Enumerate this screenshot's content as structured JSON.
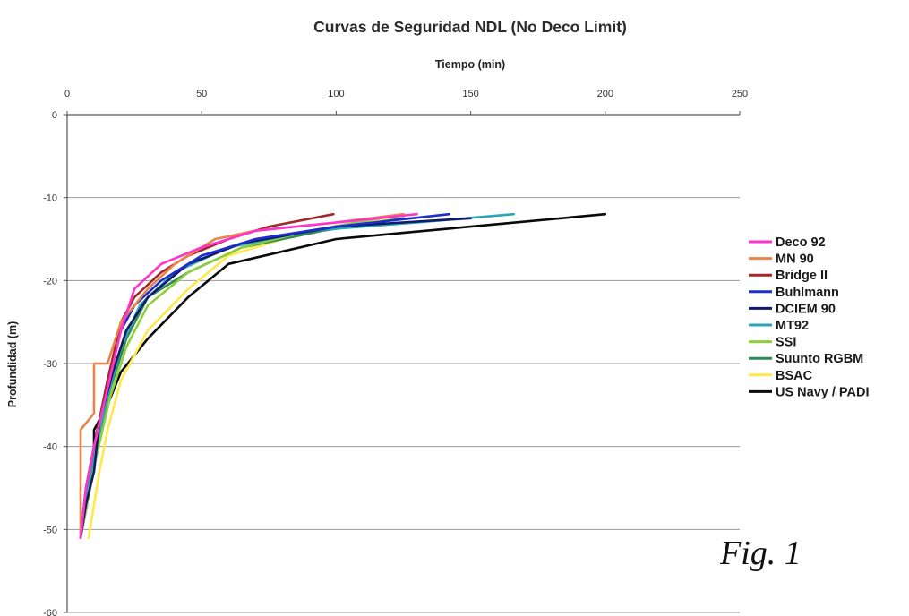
{
  "figure_label": "Fig. 1",
  "chart_data": {
    "type": "line",
    "title": "Curvas de Seguridad NDL (No Deco Limit)",
    "xlabel": "Tiempo (min)",
    "ylabel": "Profundidad (m)",
    "x_axis_position": "top",
    "xlim": [
      0,
      250
    ],
    "ylim": [
      -60,
      0
    ],
    "xticks": [
      0,
      50,
      100,
      150,
      200,
      250
    ],
    "yticks": [
      0,
      -10,
      -20,
      -30,
      -40,
      -50,
      -60
    ],
    "grid": "horizontal",
    "legend_position": "right",
    "series": [
      {
        "name": "Deco 92",
        "color": "#ff33cc",
        "points": [
          [
            5,
            -51
          ],
          [
            7,
            -45
          ],
          [
            10,
            -40
          ],
          [
            15,
            -33
          ],
          [
            20,
            -26
          ],
          [
            25,
            -21
          ],
          [
            35,
            -18
          ],
          [
            50,
            -16
          ],
          [
            70,
            -14
          ],
          [
            100,
            -13
          ],
          [
            130,
            -12
          ]
        ]
      },
      {
        "name": "MN 90",
        "color": "#e8844a",
        "points": [
          [
            5,
            -51
          ],
          [
            5,
            -38
          ],
          [
            10,
            -36
          ],
          [
            10,
            -30
          ],
          [
            15,
            -30
          ],
          [
            20,
            -25
          ],
          [
            30,
            -21
          ],
          [
            40,
            -18
          ],
          [
            55,
            -15
          ],
          [
            70,
            -14
          ],
          [
            100,
            -13
          ],
          [
            125,
            -12
          ]
        ]
      },
      {
        "name": "Bridge II",
        "color": "#a32828",
        "points": [
          [
            5,
            -51
          ],
          [
            7,
            -45
          ],
          [
            10,
            -40
          ],
          [
            15,
            -32
          ],
          [
            20,
            -25
          ],
          [
            25,
            -22
          ],
          [
            35,
            -19
          ],
          [
            45,
            -17
          ],
          [
            60,
            -15
          ],
          [
            75,
            -13.5
          ],
          [
            99,
            -12
          ]
        ]
      },
      {
        "name": "Buhlmann",
        "color": "#1c2fcc",
        "points": [
          [
            5,
            -51
          ],
          [
            7,
            -45
          ],
          [
            10,
            -40
          ],
          [
            15,
            -32
          ],
          [
            20,
            -26
          ],
          [
            25,
            -23
          ],
          [
            35,
            -20
          ],
          [
            50,
            -17
          ],
          [
            70,
            -15
          ],
          [
            100,
            -13.5
          ],
          [
            142,
            -12
          ]
        ]
      },
      {
        "name": "DCIEM 90",
        "color": "#111a66",
        "points": [
          [
            5,
            -51
          ],
          [
            7,
            -47
          ],
          [
            10,
            -43
          ],
          [
            12,
            -37
          ],
          [
            17,
            -31
          ],
          [
            22,
            -26
          ],
          [
            30,
            -22
          ],
          [
            45,
            -18
          ],
          [
            65,
            -15.5
          ],
          [
            100,
            -13.5
          ],
          [
            150,
            -12.5
          ]
        ]
      },
      {
        "name": "MT92",
        "color": "#2aa7b4",
        "points": [
          [
            5,
            -51
          ],
          [
            7,
            -46
          ],
          [
            10,
            -41
          ],
          [
            15,
            -34
          ],
          [
            20,
            -28
          ],
          [
            27,
            -23
          ],
          [
            40,
            -19
          ],
          [
            60,
            -16
          ],
          [
            90,
            -14
          ],
          [
            130,
            -13
          ],
          [
            166,
            -12
          ]
        ]
      },
      {
        "name": "SSI",
        "color": "#8ecf3a",
        "points": [
          [
            5,
            -51
          ],
          [
            8,
            -46
          ],
          [
            11,
            -41
          ],
          [
            16,
            -34
          ],
          [
            22,
            -28
          ],
          [
            30,
            -23
          ],
          [
            45,
            -19
          ],
          [
            65,
            -16
          ],
          [
            90,
            -14
          ],
          [
            125,
            -12
          ]
        ]
      },
      {
        "name": "Suunto RGBM",
        "color": "#2e8b57",
        "points": [
          [
            5,
            -51
          ],
          [
            8,
            -46
          ],
          [
            11,
            -40
          ],
          [
            16,
            -33
          ],
          [
            22,
            -27
          ],
          [
            30,
            -22
          ],
          [
            45,
            -19
          ],
          [
            65,
            -16
          ],
          [
            95,
            -14
          ],
          [
            125,
            -12.5
          ]
        ]
      },
      {
        "name": "BSAC",
        "color": "#ffe84a",
        "points": [
          [
            8,
            -51
          ],
          [
            10,
            -47
          ],
          [
            12,
            -43
          ],
          [
            15,
            -38
          ],
          [
            20,
            -32
          ],
          [
            30,
            -26
          ],
          [
            45,
            -21
          ],
          [
            60,
            -17
          ],
          [
            85,
            -14.5
          ],
          [
            120,
            -12.5
          ]
        ]
      },
      {
        "name": "US Navy / PADI",
        "color": "#0a0a0a",
        "points": [
          [
            5,
            -51
          ],
          [
            7,
            -45
          ],
          [
            10,
            -40
          ],
          [
            10,
            -38
          ],
          [
            15,
            -35
          ],
          [
            20,
            -31
          ],
          [
            30,
            -27
          ],
          [
            45,
            -22
          ],
          [
            60,
            -18
          ],
          [
            100,
            -15
          ],
          [
            150,
            -13.5
          ],
          [
            200,
            -12
          ]
        ]
      }
    ]
  }
}
